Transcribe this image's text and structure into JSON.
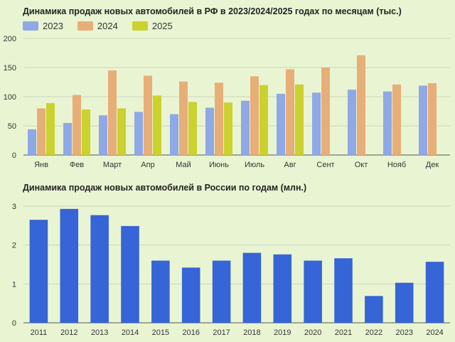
{
  "chart_data": [
    {
      "type": "bar",
      "title": "Динамика продаж новых автомобилей в РФ в 2023/2024/2025 годах по месяцам (тыс.)",
      "categories": [
        "Янв",
        "Фев",
        "Март",
        "Апр",
        "Май",
        "Июнь",
        "Июль",
        "Авг",
        "Сент",
        "Окт",
        "Нояб",
        "Дек"
      ],
      "series": [
        {
          "name": "2023",
          "color": "#8fa8e6",
          "values": [
            44,
            55,
            68,
            74,
            70,
            81,
            93,
            105,
            107,
            112,
            109,
            119
          ]
        },
        {
          "name": "2024",
          "color": "#e7ae78",
          "values": [
            80,
            103,
            145,
            136,
            126,
            124,
            135,
            147,
            150,
            171,
            121,
            123
          ]
        },
        {
          "name": "2025",
          "color": "#cbd12f",
          "values": [
            89,
            78,
            80,
            102,
            91,
            90,
            120,
            121,
            null,
            null,
            null,
            null
          ]
        }
      ],
      "ylim": [
        0,
        200
      ],
      "yticks": [
        0,
        50,
        100,
        150,
        200
      ],
      "grid": true,
      "legend": "top-left"
    },
    {
      "type": "bar",
      "title": "Динамика продаж новых автомобилей в России по годам (млн.)",
      "categories": [
        "2011",
        "2012",
        "2013",
        "2014",
        "2015",
        "2016",
        "2017",
        "2018",
        "2019",
        "2020",
        "2021",
        "2022",
        "2023",
        "2024"
      ],
      "values": [
        2.65,
        2.93,
        2.77,
        2.49,
        1.6,
        1.42,
        1.6,
        1.8,
        1.76,
        1.6,
        1.66,
        0.69,
        1.03,
        1.57
      ],
      "color": "#3565d6",
      "ylim": [
        0,
        3
      ],
      "yticks": [
        0,
        1,
        2,
        3
      ],
      "grid": true
    }
  ]
}
